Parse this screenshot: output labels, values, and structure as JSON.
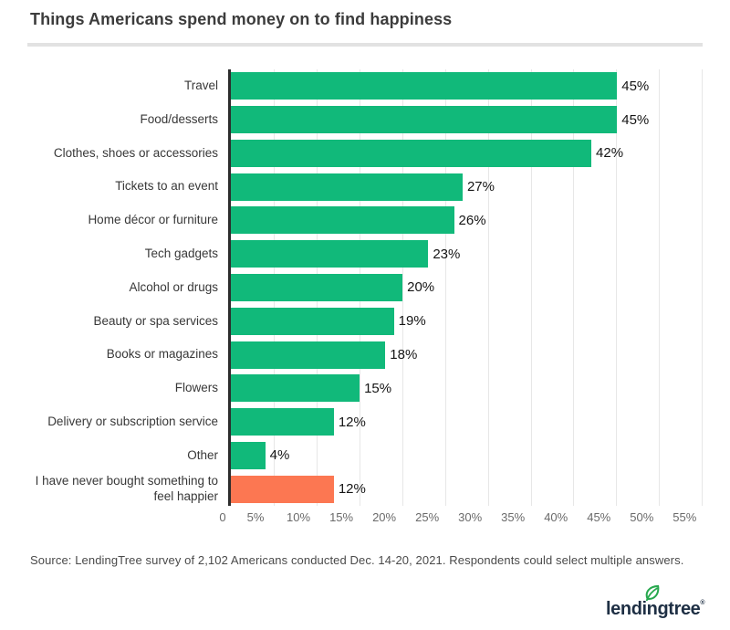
{
  "title": "Things Americans spend money on to find happiness",
  "source": "Source: LendingTree survey of 2,102 Americans conducted Dec. 14-20, 2021. Respondents could select multiple answers.",
  "logo": {
    "wordmark": "lendingtree",
    "registered": "®",
    "leaf_icon": "leaf-icon"
  },
  "colors": {
    "bar_green": "#11b97a",
    "bar_orange": "#fc7752",
    "axis": "#2d2d2d",
    "gridline": "#e7e7e7",
    "title_text": "#3c3c3c",
    "category_text": "#383838",
    "value_text": "#151515",
    "tick_text": "#6a6a6a",
    "source_text": "#4a4a4a",
    "logo_navy": "#1e2f44",
    "leaf_green": "#27a84e"
  },
  "chart_data": {
    "type": "bar",
    "orientation": "horizontal",
    "title": "Things Americans spend money on to find happiness",
    "categories": [
      "Travel",
      "Food/desserts",
      "Clothes, shoes or accessories",
      "Tickets to an event",
      "Home décor or furniture",
      "Tech gadgets",
      "Alcohol or drugs",
      "Beauty or spa services",
      "Books or magazines",
      "Flowers",
      "Delivery or subscription service",
      "Other",
      "I have never bought something to feel happier"
    ],
    "values": [
      45,
      45,
      42,
      27,
      26,
      23,
      20,
      19,
      18,
      15,
      12,
      4,
      12
    ],
    "value_labels": [
      "45%",
      "45%",
      "42%",
      "27%",
      "26%",
      "23%",
      "20%",
      "19%",
      "18%",
      "15%",
      "12%",
      "4%",
      "12%"
    ],
    "highlight_index": 12,
    "highlight_meaning": "never bought something to feel happier (orange)",
    "x_ticks": [
      {
        "label": "0",
        "value": 0
      },
      {
        "label": "5%",
        "value": 5
      },
      {
        "label": "10%",
        "value": 10
      },
      {
        "label": "15%",
        "value": 15
      },
      {
        "label": "20%",
        "value": 20
      },
      {
        "label": "25%",
        "value": 25
      },
      {
        "label": "30%",
        "value": 30
      },
      {
        "label": "35%",
        "value": 35
      },
      {
        "label": "40%",
        "value": 40
      },
      {
        "label": "45%",
        "value": 45
      },
      {
        "label": "50%",
        "value": 50
      },
      {
        "label": "55%",
        "value": 55
      }
    ],
    "xlim": [
      0,
      55.5
    ],
    "grid": "vertical",
    "legend": "none"
  }
}
